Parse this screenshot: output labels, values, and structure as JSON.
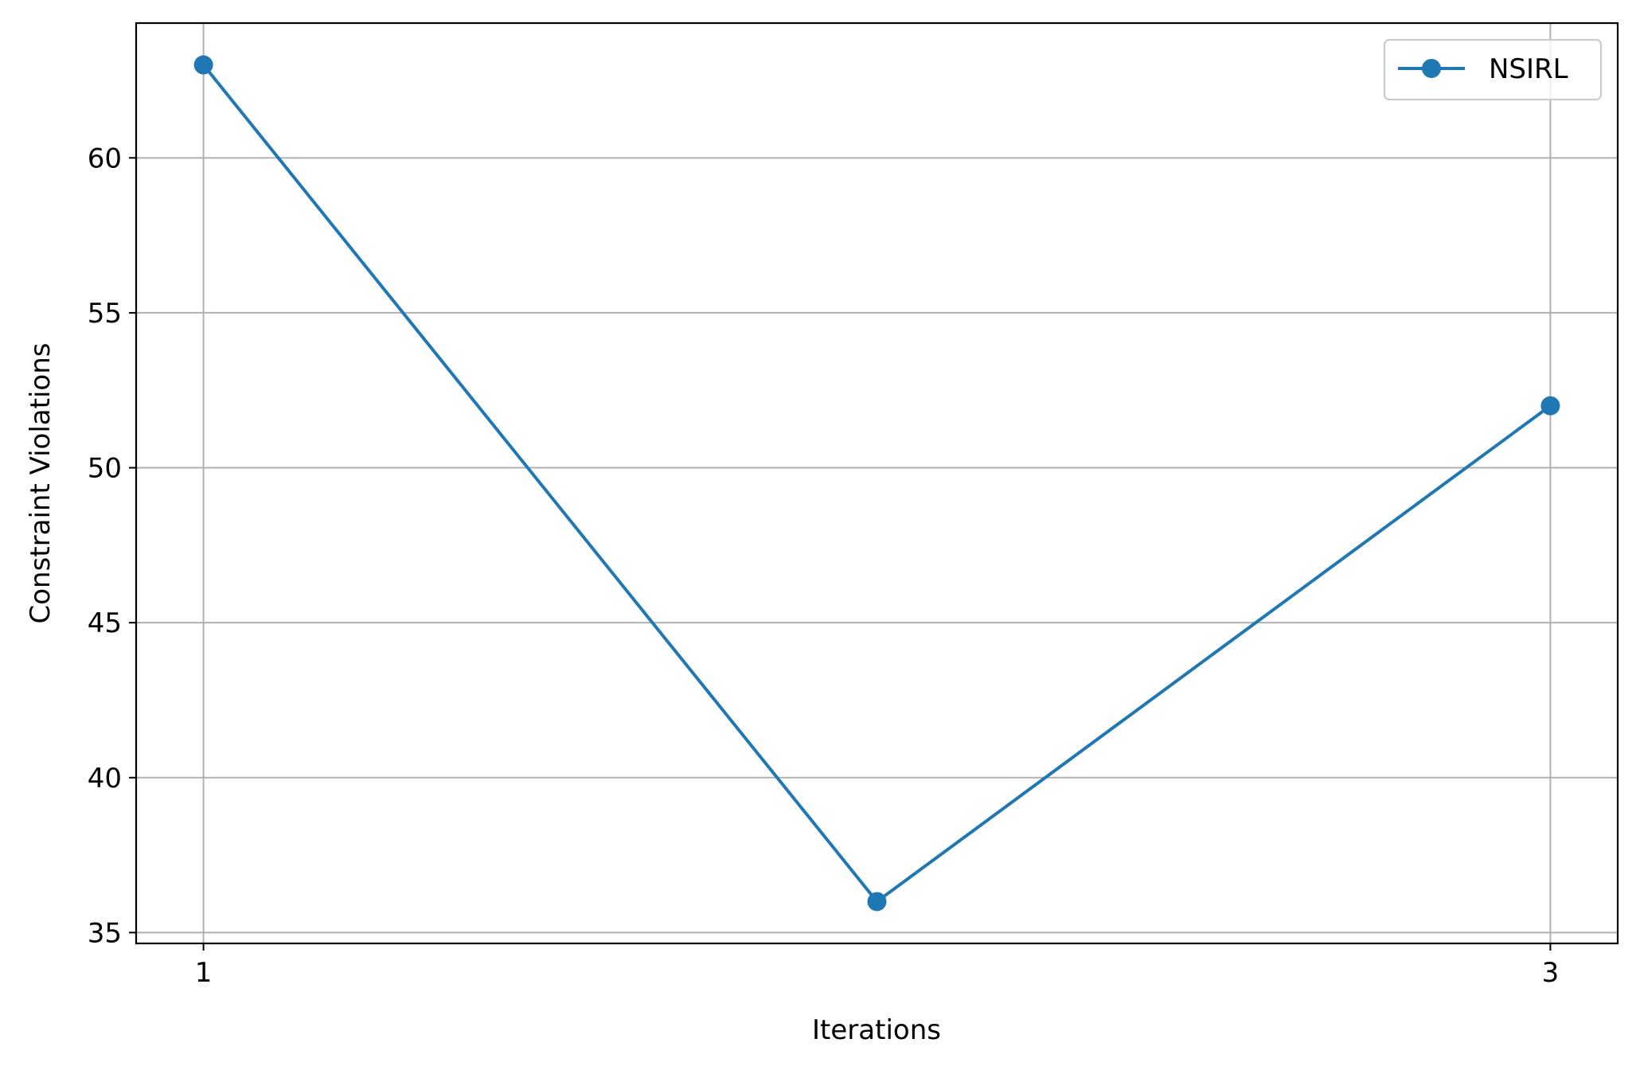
{
  "chart_data": {
    "type": "line",
    "title": "",
    "xlabel": "Iterations",
    "ylabel": "Constraint Violations",
    "xlim": [
      0.9,
      3.1
    ],
    "ylim": [
      34.65,
      64.35
    ],
    "x_ticks": [
      1,
      3
    ],
    "x_tick_labels": [
      "1",
      "3"
    ],
    "y_ticks": [
      35,
      40,
      45,
      50,
      55,
      60
    ],
    "y_tick_labels": [
      "35",
      "40",
      "45",
      "50",
      "55",
      "60"
    ],
    "grid": true,
    "legend_position": "top-right",
    "series": [
      {
        "name": "NSIRL",
        "color": "#1f77b4",
        "marker": "circle",
        "x": [
          1,
          2,
          3
        ],
        "y": [
          63,
          36,
          52
        ]
      }
    ]
  }
}
